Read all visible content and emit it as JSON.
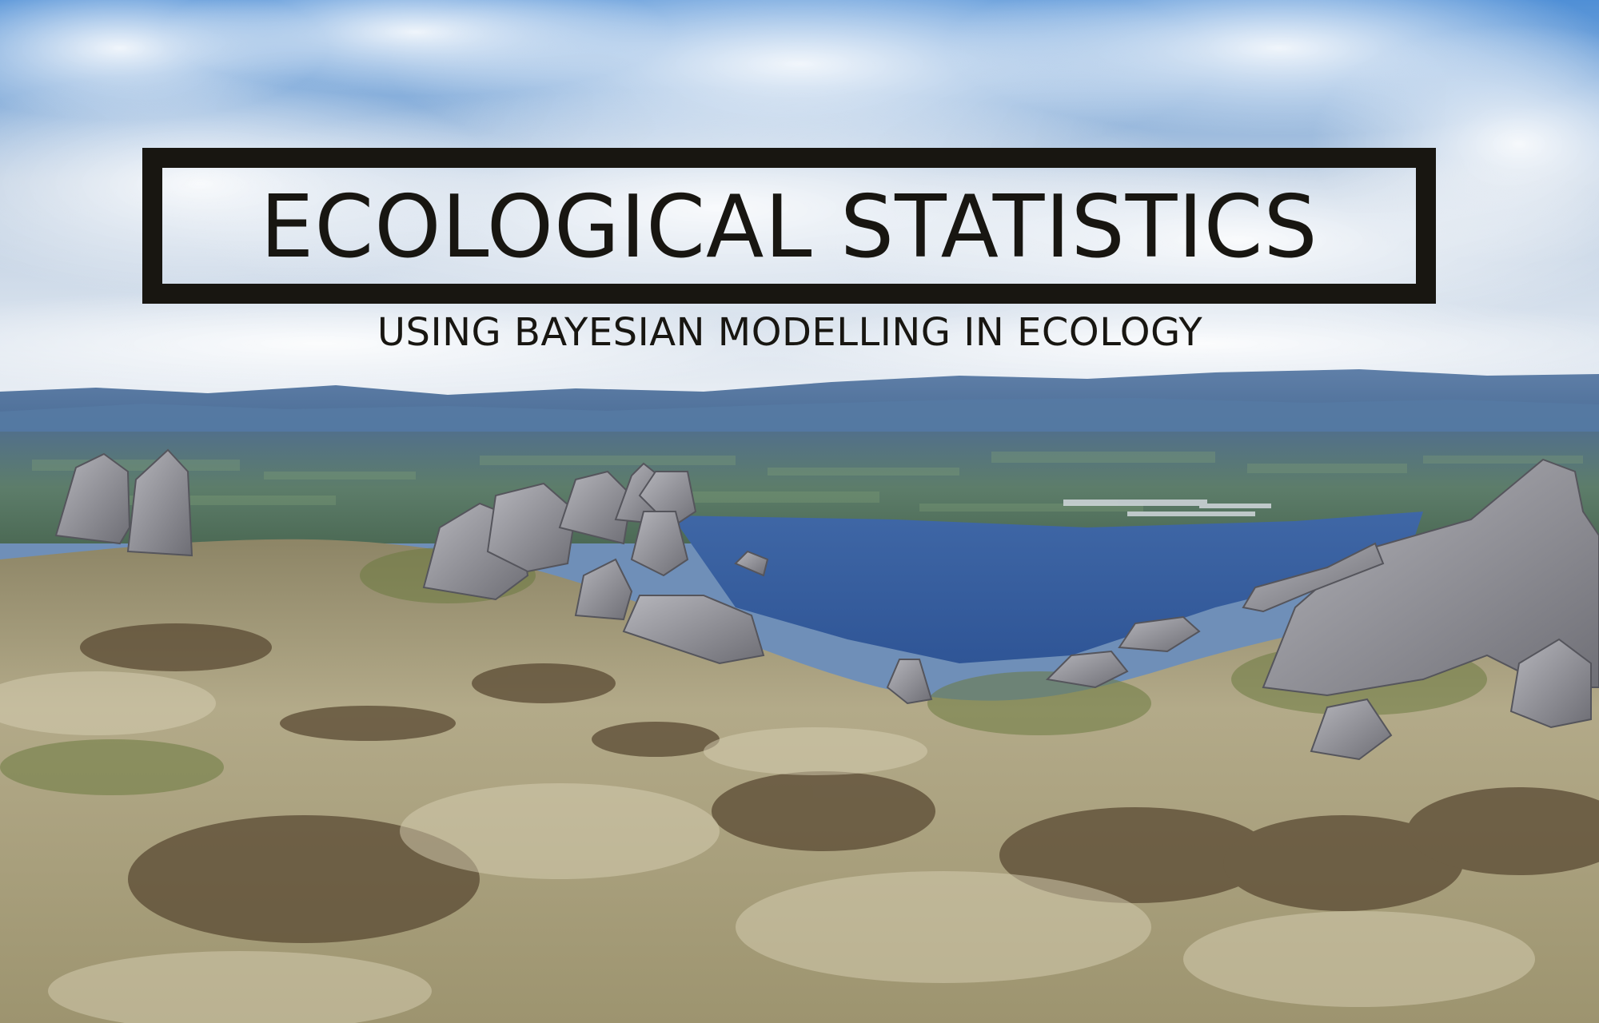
{
  "banner": {
    "title": "ECOLOGICAL STATISTICS",
    "subtitle": "USING BAYESIAN MODELLING IN ECOLOGY"
  },
  "colors": {
    "text": "#181611",
    "sky": "#5d93cf",
    "lake": "#3f6aa6",
    "tussock": "#b8ad8c",
    "rock": "#8c8c92"
  }
}
